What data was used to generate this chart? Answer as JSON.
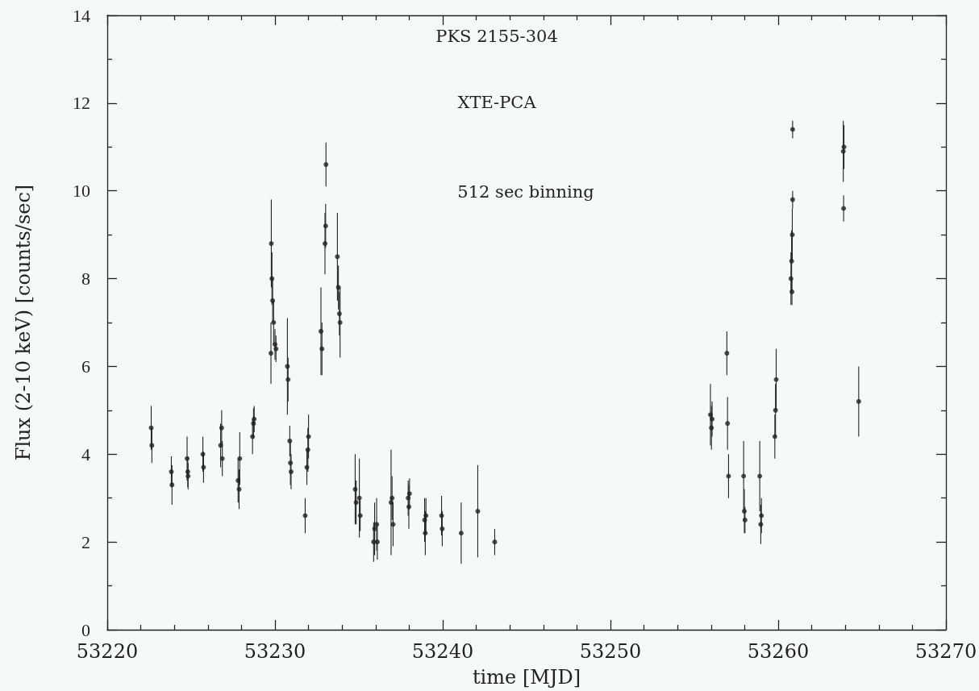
{
  "chart_data": {
    "type": "scatter",
    "title": "PKS 2155-304",
    "subtitle": "XTE-PCA",
    "annotations": [
      "512 sec binning"
    ],
    "xlabel": "time [MJD]",
    "ylabel": "Flux (2-10 keV) [counts/sec]",
    "color": "#222222",
    "grid": false,
    "xlim": [
      53220,
      53270
    ],
    "xticks": [
      53220,
      {
        "value": 53222,
        "label": null
      },
      {
        "value": 53224,
        "label": null
      },
      {
        "value": 53226,
        "label": null
      },
      {
        "value": 53228,
        "label": null
      },
      53230,
      {
        "value": 53232,
        "label": null
      },
      {
        "value": 53234,
        "label": null
      },
      {
        "value": 53236,
        "label": null
      },
      {
        "value": 53238,
        "label": null
      },
      53240,
      {
        "value": 53242,
        "label": null
      },
      {
        "value": 53244,
        "label": null
      },
      {
        "value": 53246,
        "label": null
      },
      {
        "value": 53248,
        "label": null
      },
      53250,
      {
        "value": 53252,
        "label": null
      },
      {
        "value": 53254,
        "label": null
      },
      {
        "value": 53256,
        "label": null
      },
      {
        "value": 53258,
        "label": null
      },
      53260,
      {
        "value": 53262,
        "label": null
      },
      {
        "value": 53264,
        "label": null
      },
      {
        "value": 53266,
        "label": null
      },
      {
        "value": 53268,
        "label": null
      },
      53270
    ],
    "ylim": [
      0,
      14
    ],
    "yticks": [
      0,
      {
        "value": 1,
        "label": null
      },
      2,
      {
        "value": 3,
        "label": null
      },
      4,
      {
        "value": 5,
        "label": null
      },
      6,
      {
        "value": 7,
        "label": null
      },
      8,
      {
        "value": 9,
        "label": null
      },
      10,
      {
        "value": 11,
        "label": null
      },
      12,
      {
        "value": 13,
        "label": null
      },
      14
    ],
    "x": [
      53222.62,
      53222.66,
      53223.82,
      53223.86,
      53224.76,
      53224.8,
      53224.82,
      53225.7,
      53225.74,
      53226.76,
      53226.82,
      53226.86,
      53227.8,
      53227.86,
      53227.9,
      53228.66,
      53228.72,
      53228.76,
      53229.76,
      53229.78,
      53229.82,
      53229.86,
      53229.92,
      53230.0,
      53230.06,
      53230.74,
      53230.78,
      53230.88,
      53230.92,
      53230.96,
      53231.8,
      53231.9,
      53231.96,
      53232.0,
      53232.74,
      53232.8,
      53232.98,
      53233.02,
      53233.04,
      53233.72,
      53233.78,
      53233.84,
      53233.88,
      53234.78,
      53234.84,
      53235.03,
      53235.08,
      53235.88,
      53235.94,
      53236.06,
      53236.1,
      53236.92,
      53236.98,
      53237.04,
      53237.94,
      53237.98,
      53238.02,
      53238.92,
      53238.96,
      53239.0,
      53239.93,
      53239.97,
      53241.1,
      53242.09,
      53243.1,
      53255.96,
      53256.02,
      53256.06,
      53256.94,
      53256.98,
      53257.04,
      53257.94,
      53257.98,
      53258.02,
      53258.9,
      53258.96,
      53259.0,
      53259.8,
      53259.84,
      53259.88,
      53260.76,
      53260.8,
      53260.82,
      53260.84,
      53260.86,
      53260.86,
      53263.88,
      53263.92,
      53263.9,
      53264.8
    ],
    "values": [
      4.6,
      4.2,
      3.6,
      3.3,
      3.9,
      3.6,
      3.5,
      4.0,
      3.7,
      4.2,
      4.6,
      3.9,
      3.4,
      3.2,
      3.9,
      4.4,
      4.7,
      4.8,
      6.3,
      8.8,
      8.0,
      7.5,
      7.0,
      6.5,
      6.4,
      6.0,
      5.7,
      4.3,
      3.8,
      3.6,
      2.6,
      3.7,
      4.1,
      4.4,
      6.8,
      6.4,
      8.8,
      9.2,
      10.6,
      8.5,
      7.8,
      7.2,
      7.0,
      3.2,
      2.9,
      3.0,
      2.6,
      2.0,
      2.3,
      2.4,
      2.0,
      2.9,
      3.0,
      2.4,
      3.0,
      2.8,
      3.1,
      2.5,
      2.2,
      2.6,
      2.6,
      2.3,
      2.2,
      2.7,
      2.0,
      4.9,
      4.6,
      4.8,
      6.3,
      4.7,
      3.5,
      3.5,
      2.7,
      2.5,
      3.5,
      2.4,
      2.6,
      4.4,
      5.0,
      5.7,
      8.0,
      8.4,
      7.7,
      9.0,
      9.8,
      11.4,
      10.9,
      11.0,
      9.6,
      5.2
    ],
    "errors": [
      0.5,
      0.4,
      0.35,
      0.45,
      0.5,
      0.35,
      0.3,
      0.4,
      0.35,
      0.5,
      0.4,
      0.4,
      0.5,
      0.45,
      0.6,
      0.4,
      0.35,
      0.3,
      0.7,
      1.0,
      0.6,
      0.5,
      0.5,
      0.35,
      0.3,
      1.1,
      0.5,
      0.35,
      0.5,
      0.4,
      0.4,
      0.4,
      0.5,
      0.5,
      1.0,
      0.6,
      0.7,
      0.5,
      0.5,
      1.0,
      0.5,
      0.5,
      0.8,
      0.8,
      0.5,
      0.9,
      0.35,
      0.45,
      0.6,
      0.6,
      0.4,
      1.2,
      0.5,
      0.5,
      0.4,
      0.5,
      0.35,
      0.5,
      0.5,
      0.4,
      0.45,
      0.4,
      0.7,
      1.05,
      0.3,
      0.7,
      0.5,
      0.4,
      0.5,
      0.6,
      0.5,
      0.8,
      0.5,
      0.3,
      0.8,
      0.45,
      0.4,
      0.5,
      0.6,
      0.7,
      0.6,
      0.7,
      0.3,
      0.6,
      0.2,
      0.2,
      0.7,
      0.5,
      0.3,
      0.8
    ]
  }
}
